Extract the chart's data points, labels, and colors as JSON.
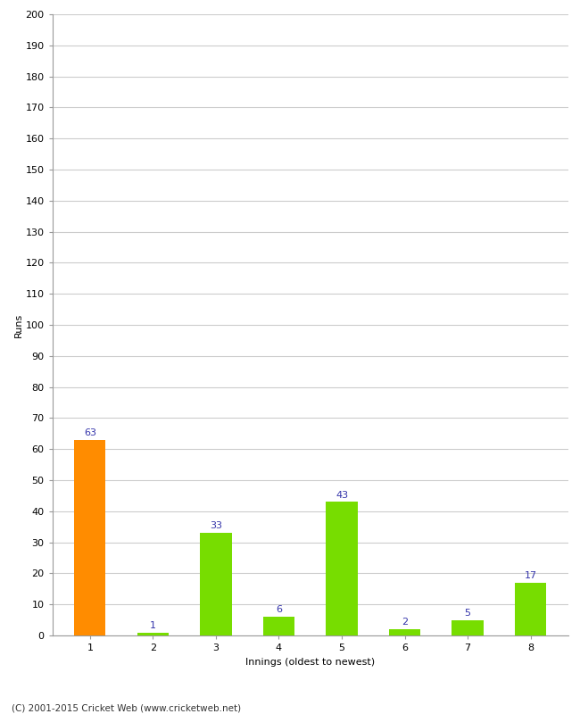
{
  "xlabel": "Innings (oldest to newest)",
  "ylabel": "Runs",
  "categories": [
    1,
    2,
    3,
    4,
    5,
    6,
    7,
    8
  ],
  "values": [
    63,
    1,
    33,
    6,
    43,
    2,
    5,
    17
  ],
  "bar_colors": [
    "#FF8C00",
    "#77DD00",
    "#77DD00",
    "#77DD00",
    "#77DD00",
    "#77DD00",
    "#77DD00",
    "#77DD00"
  ],
  "ylim": [
    0,
    200
  ],
  "yticks": [
    0,
    10,
    20,
    30,
    40,
    50,
    60,
    70,
    80,
    90,
    100,
    110,
    120,
    130,
    140,
    150,
    160,
    170,
    180,
    190,
    200
  ],
  "label_color": "#3333AA",
  "label_fontsize": 8,
  "axis_fontsize": 8,
  "ylabel_fontsize": 8,
  "footer": "(C) 2001-2015 Cricket Web (www.cricketweb.net)",
  "background_color": "#FFFFFF",
  "grid_color": "#CCCCCC",
  "bar_width": 0.5
}
